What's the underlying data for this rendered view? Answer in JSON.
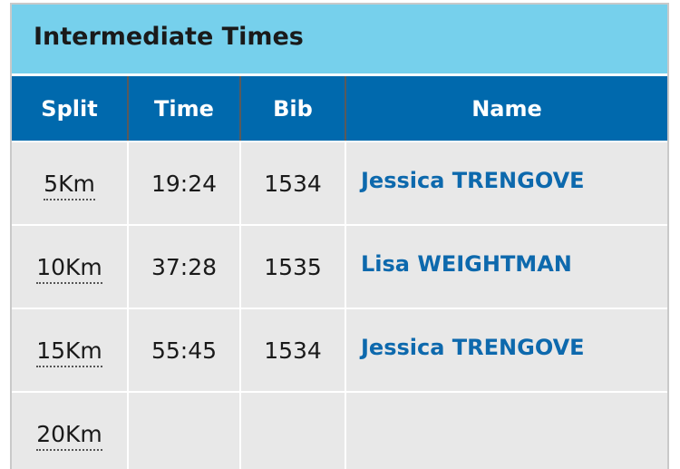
{
  "panel": {
    "title": "Intermediate Times"
  },
  "table": {
    "headers": {
      "split": "Split",
      "time": "Time",
      "bib": "Bib",
      "name": "Name"
    },
    "rows": [
      {
        "split": "5Km",
        "time": "19:24",
        "bib": "1534",
        "name": "Jessica TRENGOVE"
      },
      {
        "split": "10Km",
        "time": "37:28",
        "bib": "1535",
        "name": "Lisa WEIGHTMAN"
      },
      {
        "split": "15Km",
        "time": "55:45",
        "bib": "1534",
        "name": "Jessica TRENGOVE"
      },
      {
        "split": "20Km",
        "time": "",
        "bib": "",
        "name": ""
      }
    ]
  },
  "colors": {
    "header_band": "#76d0ec",
    "table_header": "#0069ad",
    "row_background": "#e8e8e8",
    "link": "#0d69ad"
  }
}
